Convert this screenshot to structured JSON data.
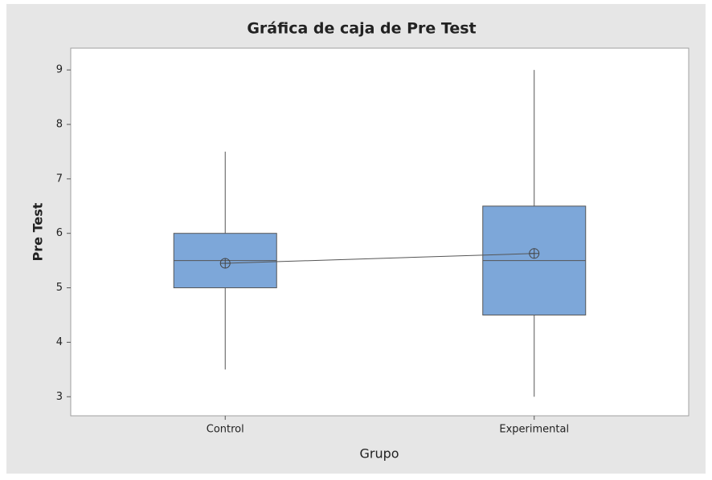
{
  "chart_data": {
    "type": "box",
    "title": "Gráfica de caja de Pre Test",
    "xlabel": "Grupo",
    "ylabel": "Pre Test",
    "categories": [
      "Control",
      "Experimental"
    ],
    "min": [
      3.5,
      3
    ],
    "q1": [
      5,
      4.5
    ],
    "median": [
      5.5,
      5.5
    ],
    "q3": [
      6,
      6.5
    ],
    "max": [
      7.5,
      9
    ],
    "mean": [
      5.45,
      5.63
    ],
    "color": "#7da7d9",
    "ylim": [
      2.65,
      9.4
    ],
    "yticks": [
      3,
      4,
      5,
      6,
      7,
      8,
      9
    ]
  }
}
